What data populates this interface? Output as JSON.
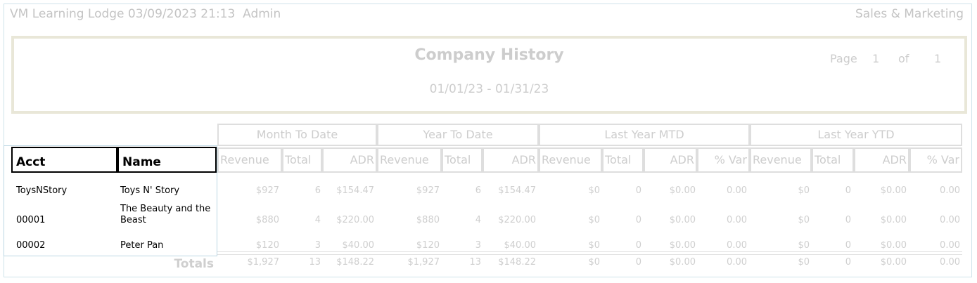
{
  "header": {
    "left": "VM Learning Lodge 03/09/2023 21:13  Admin",
    "right": "Sales & Marketing"
  },
  "report": {
    "title": "Company History",
    "date_range": "01/01/23 - 01/31/23",
    "page_label": "Page",
    "page_num": "1",
    "of_label": "of",
    "page_total": "1"
  },
  "groups": [
    "Month To Date",
    "Year To Date",
    "Last Year MTD",
    "Last Year YTD"
  ],
  "columns": {
    "acct": "Acct",
    "name": "Name",
    "revenue": "Revenue",
    "total": "Total",
    "adr": "ADR",
    "var": "% Var"
  },
  "rows": [
    {
      "acct": "ToysNStory",
      "name": "Toys N' Story",
      "values": [
        "$927",
        "6",
        "$154.47",
        "$927",
        "6",
        "$154.47",
        "$0",
        "0",
        "$0.00",
        "0.00",
        "$0",
        "0",
        "$0.00",
        "0.00"
      ]
    },
    {
      "acct": "00001",
      "name": "The Beauty and the Beast",
      "values": [
        "$880",
        "4",
        "$220.00",
        "$880",
        "4",
        "$220.00",
        "$0",
        "0",
        "$0.00",
        "0.00",
        "$0",
        "0",
        "$0.00",
        "0.00"
      ]
    },
    {
      "acct": "00002",
      "name": "Peter Pan",
      "values": [
        "$120",
        "3",
        "$40.00",
        "$120",
        "3",
        "$40.00",
        "$0",
        "0",
        "$0.00",
        "0.00",
        "$0",
        "0",
        "$0.00",
        "0.00"
      ]
    }
  ],
  "totals": {
    "label": "Totals",
    "values": [
      "$1,927",
      "13",
      "$148.22",
      "$1,927",
      "13",
      "$148.22",
      "$0",
      "0",
      "$0.00",
      "0.00",
      "$0",
      "0",
      "$0.00",
      "0.00"
    ]
  }
}
